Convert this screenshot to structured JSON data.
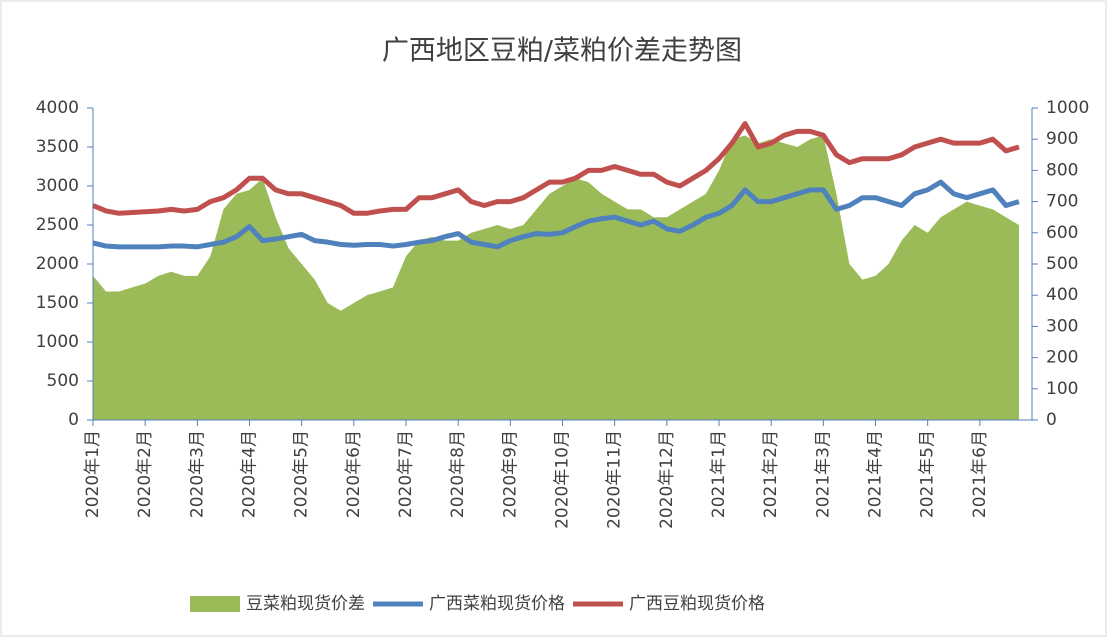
{
  "chart_data": {
    "type": "line",
    "title": "广西地区豆粕/菜粕价差走势图",
    "categories": [
      "2020年1月",
      null,
      null,
      null,
      "2020年2月",
      null,
      null,
      null,
      "2020年3月",
      null,
      null,
      null,
      "2020年4月",
      null,
      null,
      null,
      "2020年5月",
      null,
      null,
      null,
      "2020年6月",
      null,
      null,
      null,
      "2020年7月",
      null,
      null,
      null,
      "2020年8月",
      null,
      null,
      null,
      "2020年9月",
      null,
      null,
      null,
      "2020年10月",
      null,
      null,
      null,
      "2020年11月",
      null,
      null,
      null,
      "2020年12月",
      null,
      null,
      null,
      "2021年1月",
      null,
      null,
      null,
      "2021年2月",
      null,
      null,
      null,
      "2021年3月",
      null,
      null,
      null,
      "2021年4月",
      null,
      null,
      null,
      "2021年5月",
      null,
      null,
      null,
      "2021年6月",
      null,
      null,
      null
    ],
    "series": [
      {
        "name": "豆菜粕现货价差",
        "type": "area",
        "axis": "y2",
        "color": "#9bbb59",
        "values": [
          462,
          412,
          412,
          425,
          437,
          462,
          475,
          462,
          462,
          525,
          675,
          725,
          737,
          775,
          650,
          550,
          500,
          450,
          375,
          350,
          375,
          400,
          412,
          425,
          525,
          575,
          587,
          575,
          575,
          600,
          612,
          625,
          612,
          625,
          675,
          725,
          750,
          775,
          762,
          725,
          700,
          675,
          675,
          650,
          650,
          675,
          700,
          725,
          800,
          900,
          912,
          887,
          900,
          887,
          875,
          900,
          912,
          725,
          500,
          450,
          462,
          500,
          575,
          625,
          600,
          650,
          675,
          700,
          687,
          675,
          650,
          625
        ]
      },
      {
        "name": "广西菜粕现货价格",
        "type": "line",
        "color": "#4f81bd",
        "values": [
          2270,
          2230,
          2220,
          2220,
          2220,
          2220,
          2230,
          2230,
          2220,
          2250,
          2280,
          2350,
          2480,
          2300,
          2320,
          2350,
          2380,
          2300,
          2280,
          2250,
          2240,
          2250,
          2250,
          2230,
          2250,
          2280,
          2300,
          2350,
          2390,
          2280,
          2250,
          2220,
          2300,
          2350,
          2390,
          2380,
          2400,
          2480,
          2550,
          2580,
          2600,
          2550,
          2500,
          2550,
          2450,
          2420,
          2500,
          2600,
          2650,
          2750,
          2950,
          2800,
          2800,
          2850,
          2900,
          2950,
          2950,
          2700,
          2750,
          2850,
          2850,
          2800,
          2750,
          2900,
          2950,
          3050,
          2900,
          2850,
          2900,
          2950,
          2750,
          2800
        ]
      },
      {
        "name": "广西豆粕现货价格",
        "type": "line",
        "color": "#c0504d",
        "values": [
          2750,
          2680,
          2650,
          2660,
          2670,
          2680,
          2700,
          2680,
          2700,
          2800,
          2850,
          2950,
          3100,
          3100,
          2950,
          2900,
          2900,
          2850,
          2800,
          2750,
          2650,
          2650,
          2680,
          2700,
          2700,
          2850,
          2850,
          2900,
          2950,
          2800,
          2750,
          2800,
          2800,
          2850,
          2950,
          3050,
          3050,
          3100,
          3200,
          3200,
          3250,
          3200,
          3150,
          3150,
          3050,
          3000,
          3100,
          3200,
          3350,
          3550,
          3800,
          3500,
          3550,
          3650,
          3700,
          3700,
          3650,
          3400,
          3300,
          3350,
          3350,
          3350,
          3400,
          3500,
          3550,
          3600,
          3550,
          3550,
          3550,
          3600,
          3450,
          3500
        ]
      }
    ],
    "ylim": [
      0,
      4000
    ],
    "yticks": [
      0,
      500,
      1000,
      1500,
      2000,
      2500,
      3000,
      3500,
      4000
    ],
    "y2lim": [
      0,
      1000
    ],
    "y2ticks": [
      0,
      100,
      200,
      300,
      400,
      500,
      600,
      700,
      800,
      900,
      1000
    ],
    "grid": false,
    "legend": "bottom"
  }
}
